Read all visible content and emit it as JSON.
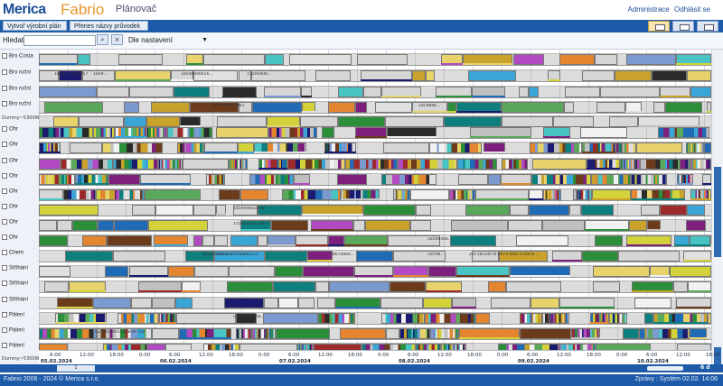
{
  "header": {
    "logo_merica": "Merica",
    "logo_fabrio": "Fabrio",
    "title": "Plánovač",
    "link_admin": "Administrace",
    "link_logout": "Odhlásit se"
  },
  "toolbar": {
    "btn_create_plan": "Vytvoř výrobní plán",
    "btn_transfer_names": "Přenes názvy průvodek",
    "view_icons": [
      "gantt-view-icon",
      "table-view-icon",
      "list-view-icon"
    ]
  },
  "search": {
    "label": "Hledat:",
    "value": "",
    "search_btn": "⌕",
    "clear_btn": "×",
    "sort_value": "Dle nastavení"
  },
  "rows": [
    {
      "label": "Bro Costa"
    },
    {
      "label": "Bro ruční"
    },
    {
      "label": "Bro ruční"
    },
    {
      "label": "Bro ruční"
    },
    {
      "label": "Dummy~53009E~0"
    },
    {
      "label": "Ohr"
    },
    {
      "label": "Ohr"
    },
    {
      "label": "Ohr"
    },
    {
      "label": "Ohr"
    },
    {
      "label": "Ohr"
    },
    {
      "label": "Ohr"
    },
    {
      "label": "Ohr"
    },
    {
      "label": "Ohr"
    },
    {
      "label": "Chem"
    },
    {
      "label": "Stříhání"
    },
    {
      "label": "Stříhání"
    },
    {
      "label": "Stříhání"
    },
    {
      "label": "Pálení"
    },
    {
      "label": "Pálení"
    },
    {
      "label": "Pálení"
    },
    {
      "label": "Dummy~53009E~0"
    }
  ],
  "bar_texts": [
    "1859774566857",
    "1859...",
    "18598446656...",
    "15594408...",
    "1859448465965",
    "1859446656567",
    "15594116114017...",
    "18598446...",
    "1859886...",
    "1859446656...",
    "1867685066890513",
    "18674844...",
    "18598...",
    "25f-181e4f78-9d75-4fbc-a78e-8...",
    "CZ-1859441181859 718",
    "CZ-18559456..."
  ],
  "timeline": {
    "ticks": [
      "6:00",
      "12:00",
      "18:00",
      "0:00",
      "6:00",
      "12:00",
      "18:00",
      "0:00",
      "6:00",
      "12:00",
      "18:00",
      "0:00",
      "6:00",
      "12:00",
      "18:00",
      "0:00",
      "6:00",
      "12:00",
      "18:00",
      "0:00",
      "6:00",
      "12:00",
      "18:00"
    ],
    "days": [
      "05.02.2024",
      "06.02.2024",
      "07.02.2024",
      "08.02.2024",
      "09.02.2024",
      "10.02.2024"
    ]
  },
  "scroll": {
    "page": "1"
  },
  "zoom": {
    "label": "6 d"
  },
  "footer": {
    "left": "Fabrio 2006 - 2024 © Merica s.r.o.",
    "right": "Zprávy : Systém 02.02. 14:06"
  }
}
